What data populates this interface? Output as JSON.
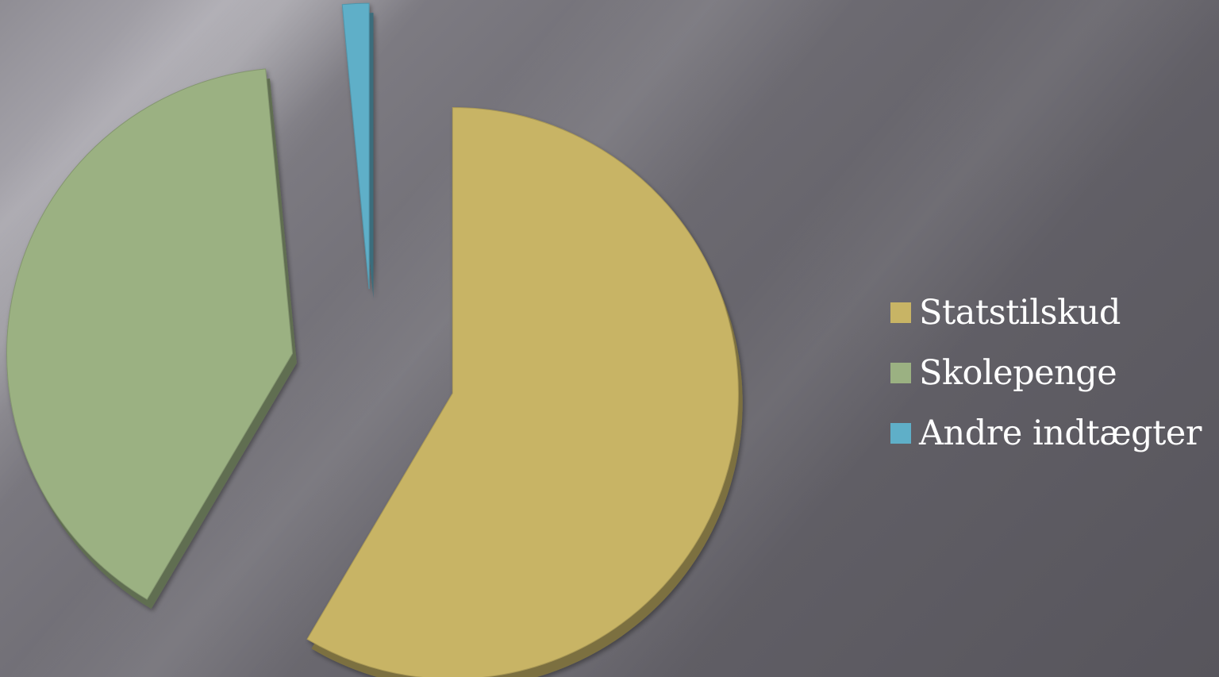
{
  "chart_data": {
    "type": "pie",
    "exploded": true,
    "legend_position": "right",
    "slices": [
      {
        "label": "Statstilskud",
        "value": 58.5,
        "color": "#c8b465"
      },
      {
        "label": "Skolepenge",
        "value": 40.0,
        "color": "#9bb182"
      },
      {
        "label": "Andre indtægter",
        "value": 1.5,
        "color": "#5fafc8"
      }
    ]
  }
}
